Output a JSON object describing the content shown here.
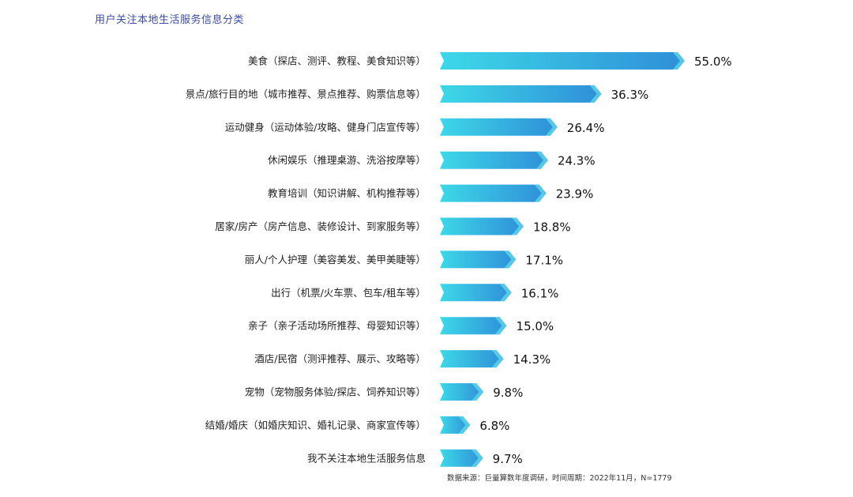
{
  "title": "用户关注本地生活服务信息分类",
  "source": "数据来源：巨量算数年度调研，时间周期：2022年11月，N=1779",
  "colors": {
    "bar_start": "#3dd8e8",
    "bar_end": "#2f8fd8",
    "title": "#3a4aa8",
    "label": "#222222"
  },
  "chart_data": {
    "type": "bar",
    "orientation": "horizontal",
    "categories": [
      "美食（探店、测评、教程、美食知识等）",
      "景点/旅行目的地（城市推荐、景点推荐、购票信息等）",
      "运动健身（运动体验/攻略、健身门店宣传等）",
      "休闲娱乐（推理桌游、洗浴按摩等）",
      "教育培训（知识讲解、机构推荐等）",
      "居家/房产（房产信息、装修设计、到家服务等）",
      "丽人/个人护理（美容美发、美甲美睫等）",
      "出行（机票/火车票、包车/租车等）",
      "亲子（亲子活动场所推荐、母婴知识等）",
      "酒店/民宿（测评推荐、展示、攻略等）",
      "宠物（宠物服务体验/探店、饲养知识等）",
      "结婚/婚庆（如婚庆知识、婚礼记录、商家宣传等）",
      "我不关注本地生活服务信息"
    ],
    "values": [
      55.0,
      36.3,
      26.4,
      24.3,
      23.9,
      18.8,
      17.1,
      16.1,
      15.0,
      14.3,
      9.8,
      6.8,
      9.7
    ],
    "value_labels": [
      "55.0%",
      "36.3%",
      "26.4%",
      "24.3%",
      "23.9%",
      "18.8%",
      "17.1%",
      "16.1%",
      "15.0%",
      "14.3%",
      "9.8%",
      "6.8%",
      "9.7%"
    ],
    "unit": "%",
    "xlim": [
      0,
      55
    ],
    "grid": false,
    "legend": "none"
  }
}
